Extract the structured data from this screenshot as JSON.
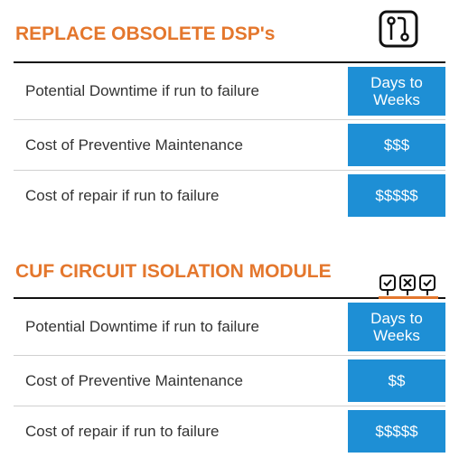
{
  "sections": [
    {
      "title": "REPLACE OBSOLETE DSP's",
      "rows": [
        [
          "Potential Downtime if run to failure",
          "Days to Weeks"
        ],
        [
          "Cost of Preventive Maintenance",
          "$$$"
        ],
        [
          "Cost of repair if run to failure",
          "$$$$$"
        ]
      ]
    },
    {
      "title": "CUF CIRCUIT ISOLATION MODULE",
      "rows": [
        [
          "Potential Downtime if run to failure",
          "Days to Weeks"
        ],
        [
          "Cost of Preventive Maintenance",
          "$$"
        ],
        [
          "Cost of repair if run to failure",
          "$$$$$"
        ]
      ]
    }
  ]
}
